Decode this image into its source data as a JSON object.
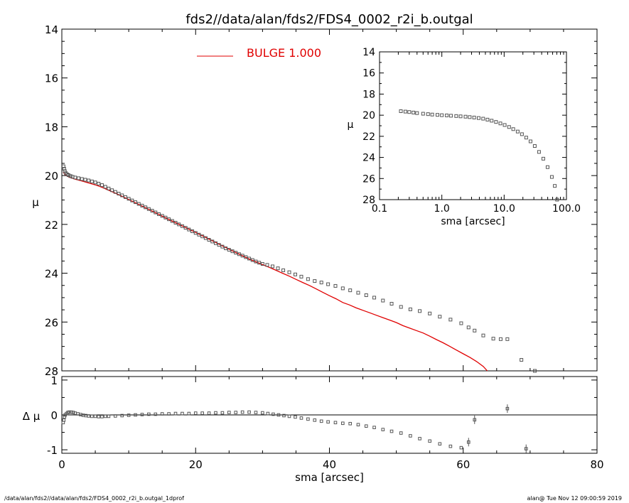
{
  "footer": {
    "left": "/data/alan/fds2//data/alan/fds2/FDS4_0002_r2i_b.outgal_1dprof",
    "right": "alan@  Tue Nov 12 09:00:59 2019"
  },
  "colors": {
    "model": "#e00000",
    "points": "#555555",
    "axes": "#000000"
  },
  "chart_data": [
    {
      "type": "scatter",
      "panel": "main",
      "title": "fds2//data/alan/fds2/FDS4_0002_r2i_b.outgal",
      "xlabel": "",
      "ylabel": "μ",
      "xlim": [
        0,
        80
      ],
      "ylim": [
        28,
        14
      ],
      "y_inverted": true,
      "x_ticks": [],
      "y_ticks": [
        "14",
        "16",
        "18",
        "20",
        "22",
        "24",
        "26",
        "28"
      ],
      "legend": {
        "position": "top",
        "label": "BULGE  1.000"
      },
      "series": [
        {
          "name": "BULGE  1.000",
          "style": "line",
          "x": [
            0.2,
            0.5,
            1,
            2,
            3,
            4,
            5,
            6,
            8,
            10,
            12,
            14,
            16,
            18,
            20,
            22,
            24,
            26,
            28,
            30,
            31,
            32,
            33,
            34,
            35,
            36,
            37,
            38,
            39,
            40,
            41,
            42,
            43,
            44,
            45,
            46,
            47,
            48,
            49,
            50,
            51,
            52,
            53,
            54,
            55,
            56,
            57,
            58,
            59,
            60,
            61,
            62,
            63,
            63.6
          ],
          "y": [
            19.85,
            19.97,
            20.05,
            20.15,
            20.22,
            20.3,
            20.38,
            20.48,
            20.72,
            20.98,
            21.25,
            21.52,
            21.8,
            22.06,
            22.33,
            22.6,
            22.88,
            23.15,
            23.42,
            23.65,
            23.76,
            23.88,
            24.0,
            24.12,
            24.25,
            24.38,
            24.5,
            24.64,
            24.78,
            24.92,
            25.05,
            25.2,
            25.3,
            25.42,
            25.52,
            25.62,
            25.72,
            25.82,
            25.92,
            26.02,
            26.15,
            26.25,
            26.35,
            26.45,
            26.58,
            26.72,
            26.85,
            27.0,
            27.15,
            27.3,
            27.45,
            27.62,
            27.82,
            28.0
          ]
        },
        {
          "name": "",
          "style": "points",
          "x": [
            0.25,
            0.35,
            0.45,
            0.6,
            0.8,
            1.0,
            1.3,
            1.6,
            2.0,
            2.5,
            3.0,
            3.5,
            4.0,
            4.5,
            5.0,
            5.5,
            6.0,
            6.5,
            7.0,
            7.5,
            8.0,
            8.5,
            9.0,
            9.5,
            10.0,
            10.5,
            11.0,
            11.5,
            12.0,
            12.5,
            13.0,
            13.5,
            14.0,
            14.5,
            15.0,
            15.5,
            16.0,
            16.5,
            17.0,
            17.5,
            18.0,
            18.5,
            19.0,
            19.5,
            20.0,
            20.5,
            21.0,
            21.5,
            22.0,
            22.5,
            23.0,
            23.5,
            24.0,
            24.5,
            25.0,
            25.5,
            26.0,
            26.5,
            27.0,
            27.5,
            28.0,
            28.5,
            29.0,
            29.5,
            30.0,
            30.7,
            31.5,
            32.3,
            33.1,
            34.0,
            34.9,
            35.8,
            36.8,
            37.8,
            38.8,
            39.8,
            40.9,
            42.0,
            43.1,
            44.3,
            45.5,
            46.7,
            48.0,
            49.3,
            50.7,
            52.1,
            53.5,
            55.0,
            56.5,
            58.1,
            59.7,
            60.8,
            61.7,
            63.0,
            64.5,
            65.6,
            66.6,
            68.7,
            70.7
          ],
          "y": [
            19.62,
            19.72,
            19.82,
            19.9,
            19.95,
            19.98,
            20.02,
            20.05,
            20.08,
            20.11,
            20.14,
            20.17,
            20.2,
            20.24,
            20.28,
            20.33,
            20.39,
            20.46,
            20.53,
            20.6,
            20.67,
            20.74,
            20.81,
            20.88,
            20.95,
            21.02,
            21.09,
            21.16,
            21.23,
            21.3,
            21.37,
            21.44,
            21.51,
            21.58,
            21.65,
            21.72,
            21.79,
            21.86,
            21.93,
            22.0,
            22.07,
            22.14,
            22.21,
            22.28,
            22.35,
            22.42,
            22.49,
            22.56,
            22.63,
            22.7,
            22.77,
            22.84,
            22.91,
            22.98,
            23.04,
            23.1,
            23.16,
            23.22,
            23.28,
            23.34,
            23.4,
            23.46,
            23.52,
            23.57,
            23.62,
            23.66,
            23.72,
            23.8,
            23.88,
            23.96,
            24.05,
            24.14,
            24.24,
            24.32,
            24.38,
            24.45,
            24.52,
            24.62,
            24.7,
            24.8,
            24.9,
            25.0,
            25.12,
            25.25,
            25.38,
            25.48,
            25.55,
            25.65,
            25.78,
            25.9,
            26.05,
            26.22,
            26.35,
            26.55,
            26.68,
            26.7,
            26.7,
            27.55,
            28.0
          ]
        }
      ]
    },
    {
      "type": "scatter",
      "panel": "inset",
      "title": "",
      "xlabel": "sma [arcsec]",
      "ylabel": "μ",
      "x_scale": "log",
      "xlim": [
        0.1,
        100
      ],
      "ylim": [
        28,
        14
      ],
      "y_inverted": true,
      "x_ticks": [
        "0.1",
        "1.0",
        "10.0",
        "100.0"
      ],
      "y_ticks": [
        "14",
        "16",
        "18",
        "20",
        "22",
        "24",
        "26",
        "28"
      ],
      "series": [
        {
          "name": "",
          "style": "points",
          "x": [
            0.22,
            0.26,
            0.3,
            0.35,
            0.4,
            0.5,
            0.6,
            0.7,
            0.85,
            1.0,
            1.2,
            1.4,
            1.7,
            2.0,
            2.4,
            2.8,
            3.3,
            3.9,
            4.6,
            5.4,
            6.3,
            7.4,
            8.7,
            10.2,
            12.0,
            14.0,
            16.5,
            19.3,
            22.6,
            26.5,
            31.0,
            36.3,
            42.5,
            49.8,
            58.3,
            65.0,
            70.7
          ],
          "y": [
            19.62,
            19.66,
            19.7,
            19.75,
            19.8,
            19.86,
            19.9,
            19.94,
            19.97,
            20.0,
            20.02,
            20.05,
            20.08,
            20.11,
            20.14,
            20.18,
            20.22,
            20.27,
            20.33,
            20.42,
            20.52,
            20.64,
            20.78,
            20.93,
            21.12,
            21.32,
            21.55,
            21.8,
            22.12,
            22.48,
            22.92,
            23.48,
            24.12,
            24.92,
            25.85,
            26.7,
            28.0
          ]
        }
      ]
    },
    {
      "type": "scatter",
      "panel": "residual",
      "title": "",
      "xlabel": "sma [arcsec]",
      "ylabel": "Δ μ",
      "xlim": [
        0,
        80
      ],
      "ylim": [
        -1.1,
        1.1
      ],
      "x_ticks": [
        "0",
        "20",
        "40",
        "60",
        "80"
      ],
      "y_ticks": [
        "1",
        "0",
        "-1"
      ],
      "reference_line": 0,
      "series": [
        {
          "name": "",
          "style": "points",
          "x": [
            0.2,
            0.3,
            0.4,
            0.5,
            0.7,
            0.9,
            1.1,
            1.4,
            1.7,
            2.0,
            2.4,
            2.8,
            3.2,
            3.6,
            4.0,
            4.5,
            5.0,
            5.5,
            6.0,
            6.5,
            7.0,
            8.0,
            9.0,
            10.0,
            11.0,
            12.0,
            13.0,
            14.0,
            15.0,
            16.0,
            17.0,
            18.0,
            19.0,
            20.0,
            21.0,
            22.0,
            23.0,
            24.0,
            25.0,
            26.0,
            27.0,
            28.0,
            29.0,
            30.0,
            30.8,
            31.6,
            32.4,
            33.2,
            34.0,
            34.9,
            35.8,
            36.8,
            37.8,
            38.8,
            39.8,
            40.9,
            42.0,
            43.1,
            44.3,
            45.5,
            46.7,
            48.0,
            49.3,
            50.7,
            52.1,
            53.5,
            55.0,
            56.5,
            58.1,
            59.7,
            60.8,
            61.7,
            66.6,
            69.4
          ],
          "y": [
            -0.22,
            -0.15,
            -0.06,
            0.0,
            0.04,
            0.07,
            0.08,
            0.08,
            0.07,
            0.05,
            0.03,
            0.01,
            -0.01,
            -0.02,
            -0.03,
            -0.04,
            -0.04,
            -0.05,
            -0.05,
            -0.04,
            -0.04,
            -0.03,
            -0.02,
            -0.01,
            0.0,
            0.01,
            0.02,
            0.02,
            0.03,
            0.03,
            0.04,
            0.04,
            0.04,
            0.05,
            0.05,
            0.05,
            0.06,
            0.06,
            0.07,
            0.07,
            0.08,
            0.08,
            0.07,
            0.06,
            0.04,
            0.02,
            0.0,
            -0.02,
            -0.04,
            -0.06,
            -0.09,
            -0.12,
            -0.15,
            -0.18,
            -0.2,
            -0.22,
            -0.24,
            -0.25,
            -0.28,
            -0.32,
            -0.36,
            -0.42,
            -0.47,
            -0.52,
            -0.6,
            -0.68,
            -0.75,
            -0.83,
            -0.9,
            -0.94,
            -0.78,
            -0.14,
            0.18,
            -0.97
          ]
        }
      ]
    }
  ]
}
